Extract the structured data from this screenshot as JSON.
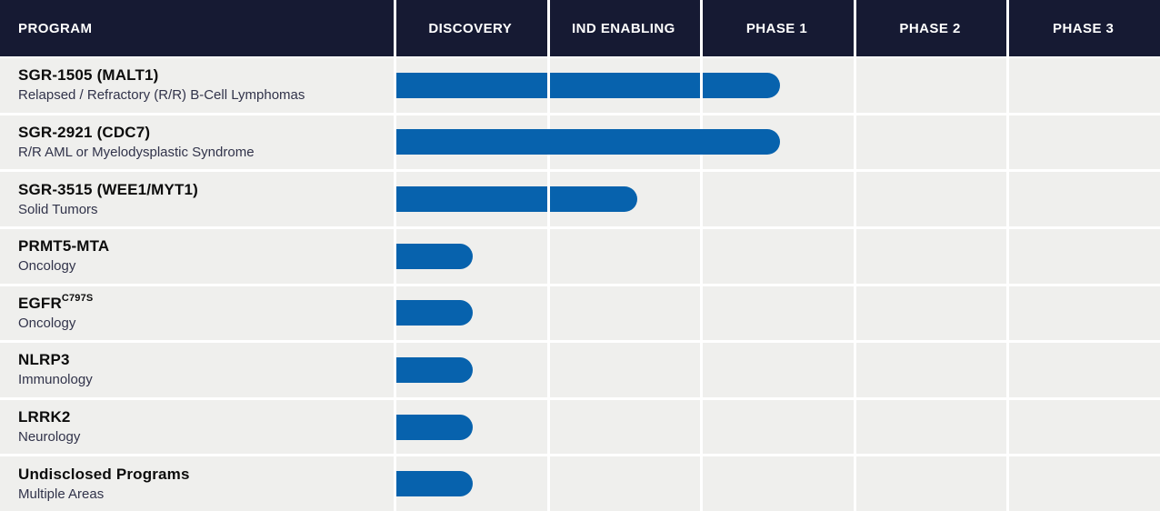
{
  "header": {
    "program": "PROGRAM",
    "phases": [
      "DISCOVERY",
      "IND ENABLING",
      "PHASE 1",
      "PHASE 2",
      "PHASE 3"
    ]
  },
  "programs": [
    {
      "title": "SGR-1505 (MALT1)",
      "title_sup": "",
      "subtitle": "Relapsed / Refractory (R/R) B-Cell Lymphomas",
      "stage_reached": "Phase 1",
      "bar_columns": 2.5
    },
    {
      "title": "SGR-2921 (CDC7)",
      "title_sup": "",
      "subtitle": "R/R AML or Myelodysplastic Syndrome",
      "stage_reached": "Phase 1",
      "bar_columns": 2.5
    },
    {
      "title": "SGR-3515 (WEE1/MYT1)",
      "title_sup": "",
      "subtitle": "Solid Tumors",
      "stage_reached": "IND Enabling",
      "bar_columns": 1.57
    },
    {
      "title": "PRMT5-MTA",
      "title_sup": "",
      "subtitle": "Oncology",
      "stage_reached": "Discovery",
      "bar_columns": 0.5
    },
    {
      "title": "EGFR",
      "title_sup": "C797S",
      "subtitle": "Oncology",
      "stage_reached": "Discovery",
      "bar_columns": 0.5
    },
    {
      "title": "NLRP3",
      "title_sup": "",
      "subtitle": "Immunology",
      "stage_reached": "Discovery",
      "bar_columns": 0.5
    },
    {
      "title": "LRRK2",
      "title_sup": "",
      "subtitle": "Neurology",
      "stage_reached": "Discovery",
      "bar_columns": 0.5
    },
    {
      "title": "Undisclosed Programs",
      "title_sup": "",
      "subtitle": "Multiple Areas",
      "stage_reached": "Discovery",
      "bar_columns": 0.5
    }
  ],
  "colors": {
    "header_bg": "#161a33",
    "header_text": "#ffffff",
    "row_bg": "#efefed",
    "bar": "#0762ad",
    "grid": "#ffffff",
    "title_text": "#0c0c0c",
    "subtitle_text": "#31334a"
  },
  "chart_data": {
    "type": "bar",
    "orientation": "horizontal",
    "title": "",
    "categories": [
      "SGR-1505 (MALT1)",
      "SGR-2921 (CDC7)",
      "SGR-3515 (WEE1/MYT1)",
      "PRMT5-MTA",
      "EGFR C797S",
      "NLRP3",
      "LRRK2",
      "Undisclosed Programs"
    ],
    "category_subtitles": [
      "Relapsed / Refractory (R/R) B-Cell Lymphomas",
      "R/R AML or Myelodysplastic Syndrome",
      "Solid Tumors",
      "Oncology",
      "Oncology",
      "Immunology",
      "Neurology",
      "Multiple Areas"
    ],
    "x_axis_phases": [
      "Discovery",
      "IND Enabling",
      "Phase 1",
      "Phase 2",
      "Phase 3"
    ],
    "values_phase_columns_spanned": [
      2.5,
      2.5,
      1.57,
      0.5,
      0.5,
      0.5,
      0.5,
      0.5
    ],
    "stage_reached": [
      "Phase 1",
      "Phase 1",
      "IND Enabling",
      "Discovery",
      "Discovery",
      "Discovery",
      "Discovery",
      "Discovery"
    ],
    "xlim": [
      0,
      5
    ],
    "grid": true,
    "legend": "none"
  }
}
